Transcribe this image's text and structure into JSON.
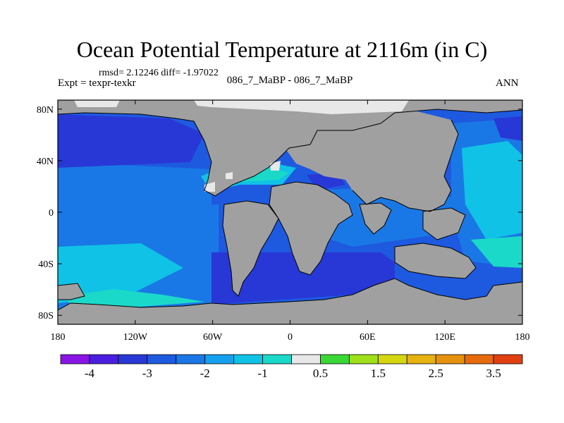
{
  "title": "Ocean Potential Temperature at 2116m (in C)",
  "stats": "rmsd= 2.12246 diff= -1.97022",
  "experiment": "Expt = texpr-texkr",
  "subtitle": "086_7_MaBP - 086_7_MaBP",
  "season": "ANN",
  "lat_labels": [
    "80N",
    "40N",
    "0",
    "40S",
    "80S"
  ],
  "lat_values": [
    80,
    40,
    0,
    -40,
    -80
  ],
  "lon_labels": [
    "180",
    "120W",
    "60W",
    "0",
    "60E",
    "120E",
    "180"
  ],
  "lon_values": [
    -180,
    -120,
    -60,
    0,
    60,
    120,
    180
  ],
  "colorbar": {
    "colors": [
      "#8a14e6",
      "#4a1ee0",
      "#2838d6",
      "#1e5ae0",
      "#1a78e6",
      "#14a0ee",
      "#10c2e6",
      "#1ad9c8",
      "#e8e8e8",
      "#3ad836",
      "#9ee01a",
      "#d6d610",
      "#e6b210",
      "#e6920e",
      "#e66a0e",
      "#e04010"
    ],
    "labels": [
      "-4",
      "-3",
      "-2",
      "-1",
      "0.5",
      "1.5",
      "2.5",
      "3.5"
    ]
  },
  "palette": {
    "land": "#a0a0a0",
    "ice": "#e8e8e8",
    "ocean_base": "#1e5ae0",
    "ocean_light": "#1a78e6",
    "ocean_cyan": "#10c2e6",
    "ocean_teal": "#1ad9c8",
    "ocean_deep": "#2838d6"
  }
}
